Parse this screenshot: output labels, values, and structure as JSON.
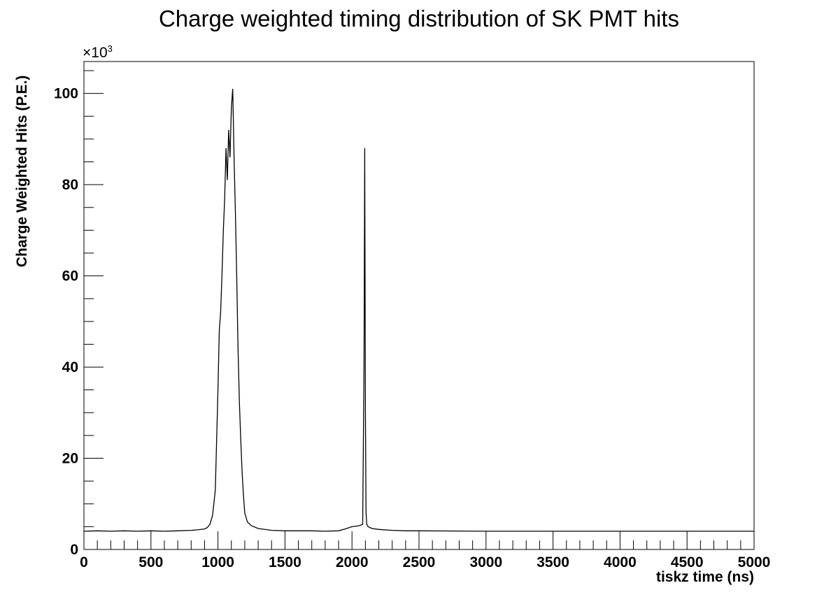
{
  "chart_data": {
    "type": "line",
    "title": "Charge weighted timing distribution of SK PMT hits",
    "xlabel": "tiskz time (ns)",
    "ylabel": "Charge Weighted Hits (P.E.)",
    "y_multiplier": "×10",
    "y_multiplier_exp": "3",
    "xlim": [
      0,
      5000
    ],
    "ylim": [
      0,
      107
    ],
    "x_ticks": [
      0,
      500,
      1000,
      1500,
      2000,
      2500,
      3000,
      3500,
      4000,
      4500,
      5000
    ],
    "y_ticks": [
      0,
      20,
      40,
      60,
      80,
      100
    ],
    "grid": false,
    "series": [
      {
        "x": [
          0,
          100,
          200,
          300,
          400,
          500,
          600,
          700,
          800,
          850,
          900,
          920,
          940,
          960,
          980,
          1000,
          1010,
          1020,
          1030,
          1040,
          1050,
          1060,
          1070,
          1080,
          1090,
          1100,
          1110,
          1120,
          1130,
          1140,
          1150,
          1160,
          1170,
          1180,
          1190,
          1200,
          1220,
          1250,
          1300,
          1400,
          1500,
          1600,
          1700,
          1800,
          1900,
          1950,
          2000,
          2050,
          2080,
          2090,
          2095,
          2100,
          2105,
          2110,
          2120,
          2150,
          2200,
          2300,
          2400,
          2500,
          3000,
          3500,
          4000,
          4500,
          5000
        ],
        "y": [
          4.0,
          4.1,
          4.0,
          4.1,
          4.0,
          4.1,
          4.0,
          4.1,
          4.2,
          4.3,
          4.5,
          4.8,
          5.5,
          7.5,
          13,
          35,
          48,
          52,
          60,
          70,
          77,
          88,
          81,
          92,
          86,
          97,
          101,
          86,
          74,
          60,
          44,
          32,
          24,
          17,
          12,
          8,
          6,
          5.2,
          4.6,
          4.2,
          4.1,
          4.1,
          4.1,
          4.0,
          4.1,
          4.5,
          5.0,
          5.2,
          5.5,
          40,
          88,
          30,
          8,
          5.5,
          5.0,
          4.6,
          4.4,
          4.2,
          4.1,
          4.1,
          4.0,
          4.0,
          4.0,
          4.0,
          4.0
        ]
      }
    ]
  }
}
